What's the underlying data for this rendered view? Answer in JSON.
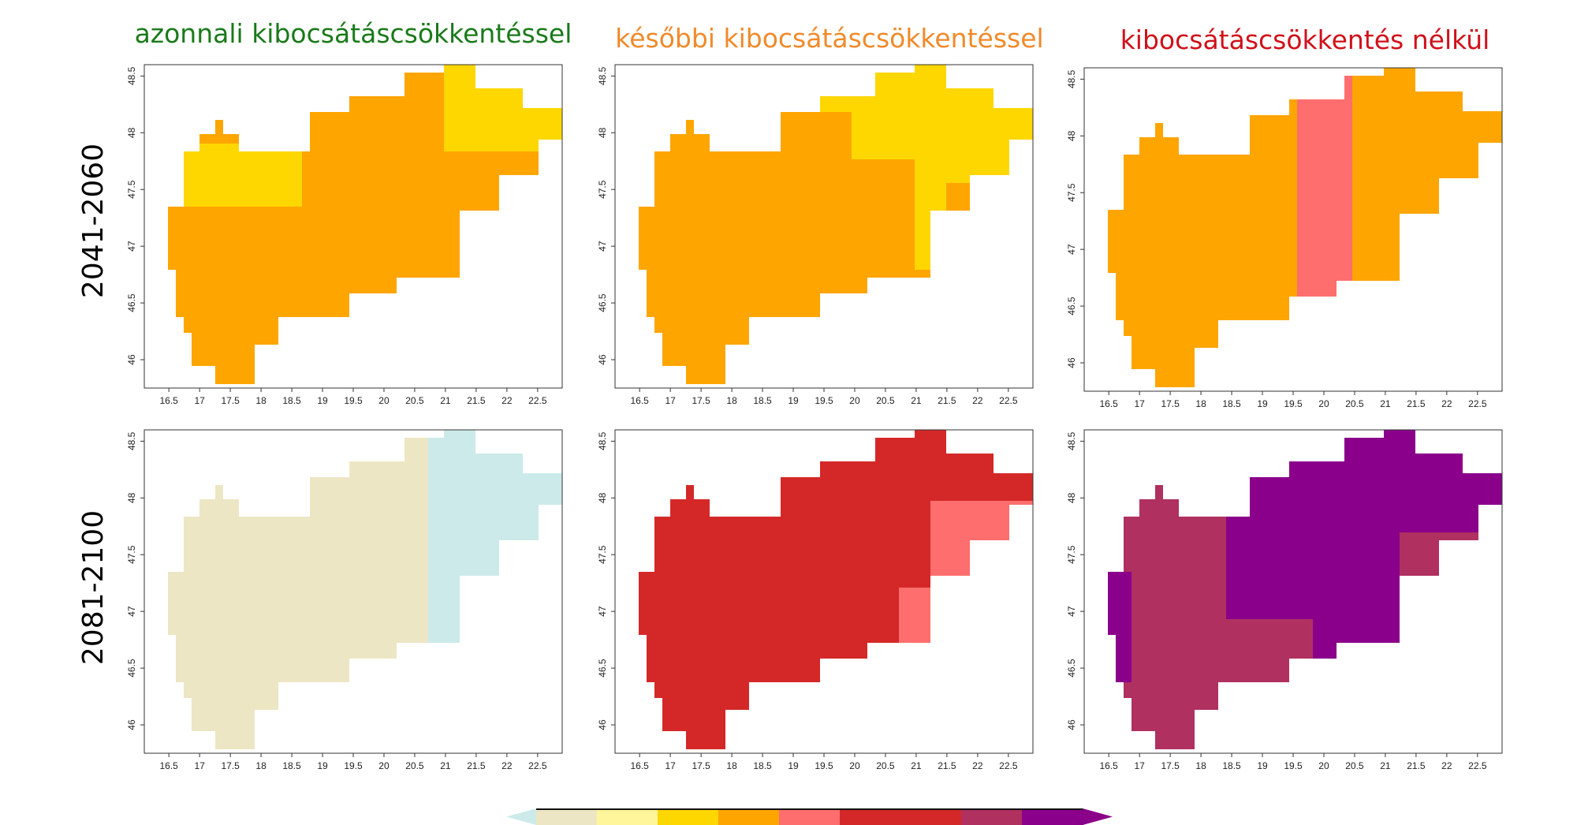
{
  "columns": [
    {
      "title": "azonnali kibocsátáscsökkentéssel",
      "color": "#1a7a1a"
    },
    {
      "title": "későbbi kibocsátáscsökkentéssel",
      "color": "#f08a2a"
    },
    {
      "title": "kibocsátáscsökkentés nélkül",
      "color": "#d0101a"
    }
  ],
  "rows": [
    {
      "label": "2041-2060"
    },
    {
      "label": "2081-2100"
    }
  ],
  "axes": {
    "x_ticks": [
      "16.5",
      "17",
      "17.5",
      "18",
      "18.5",
      "19",
      "19.5",
      "20",
      "20.5",
      "21",
      "21.5",
      "22",
      "22.5"
    ],
    "y_ticks": [
      "46",
      "46.5",
      "47",
      "47.5",
      "48",
      "48.5"
    ],
    "xlim": [
      16.1,
      22.9
    ],
    "ylim": [
      45.75,
      48.6
    ]
  },
  "colorbar": {
    "left_arrow_color": "#cdeaea",
    "right_arrow_color": "#8a0088",
    "segments": [
      "#ede6c4",
      "#fff59a",
      "#ffd700",
      "#ffa500",
      "#ff6e6e",
      "#d42828",
      "#d42828",
      "#b03060",
      "#8b008b"
    ]
  },
  "chart_data": {
    "type": "heatmap",
    "description_of_classes": [
      "#cdeaea",
      "#ede6c4",
      "#fff59a",
      "#ffd700",
      "#ffa500",
      "#ff6e6e",
      "#d42828",
      "#b03060",
      "#8b008b"
    ],
    "panels": [
      {
        "row": "2041-2060",
        "column": "azonnali kibocsátáscsökkentéssel",
        "fill": "#ffa500",
        "alt": "#ffd700"
      },
      {
        "row": "2041-2060",
        "column": "későbbi kibocsátáscsökkentéssel",
        "fill": "#ffa500",
        "alt": "#ffd700"
      },
      {
        "row": "2041-2060",
        "column": "kibocsátáscsökkentés nélkül",
        "fill": "#ffa500",
        "alt": "#ff6e6e"
      },
      {
        "row": "2081-2100",
        "column": "azonnali kibocsátáscsökkentéssel",
        "fill": "#ede6c4",
        "alt": "#cdeaea"
      },
      {
        "row": "2081-2100",
        "column": "későbbi kibocsátáscsökkentéssel",
        "fill": "#d42828",
        "alt": "#ff6e6e"
      },
      {
        "row": "2081-2100",
        "column": "kibocsátáscsökkentés nélkül",
        "fill": "#b03060",
        "alt": "#8b008b"
      }
    ]
  }
}
